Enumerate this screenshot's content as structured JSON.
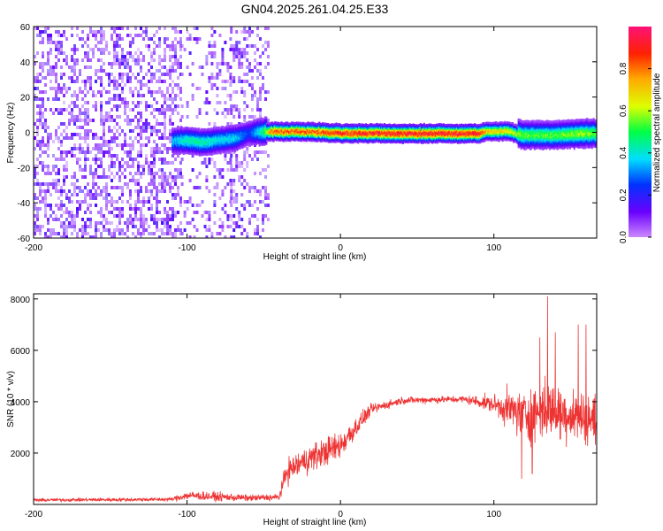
{
  "title": "GN04.2025.261.04.25.E33",
  "chart_data": [
    {
      "type": "heatmap",
      "name": "spectrogram",
      "xlabel": "Height of straight line (km)",
      "ylabel": "Frequency (Hz)",
      "xlim": [
        -200,
        167
      ],
      "ylim": [
        -60,
        60
      ],
      "xticks": [
        -200,
        -100,
        0,
        100
      ],
      "yticks": [
        -60,
        -40,
        -20,
        0,
        20,
        40,
        60
      ],
      "x_ticklabels": [
        "-200",
        "-100",
        "0",
        "100"
      ],
      "y_ticklabels": [
        "-60",
        "-40",
        "-20",
        "0",
        "20",
        "40",
        "60"
      ],
      "colorbar": {
        "label": "Normalized spectral amplitude",
        "range": [
          0,
          1
        ],
        "ticks": [
          0.0,
          0.2,
          0.4,
          0.6,
          0.8
        ],
        "ticklabels": [
          "0.0",
          "0.2",
          "0.4",
          "0.6",
          "0.8"
        ],
        "stops": [
          "#cc88ff",
          "#6a00ff",
          "#0033ff",
          "#00ddff",
          "#00ff44",
          "#ddff00",
          "#ffaa00",
          "#ff2200",
          "#ff1177"
        ]
      },
      "noise_segments": [
        {
          "x_start": -200,
          "x_end": -104,
          "level": 0.45
        },
        {
          "x_start": -104,
          "x_end": -96,
          "level": 0.22
        },
        {
          "x_start": -96,
          "x_end": -88,
          "level": 0.12
        },
        {
          "x_start": -88,
          "x_end": -72,
          "level": 0.25
        },
        {
          "x_start": -72,
          "x_end": -60,
          "level": 0.4
        },
        {
          "x_start": -60,
          "x_end": -47,
          "level": 0.3
        }
      ],
      "signal_band": [
        {
          "x": -110,
          "freq": -4,
          "amp": 0.35
        },
        {
          "x": -100,
          "freq": -4,
          "amp": 0.45
        },
        {
          "x": -90,
          "freq": -5,
          "amp": 0.45
        },
        {
          "x": -80,
          "freq": -4,
          "amp": 0.4
        },
        {
          "x": -70,
          "freq": -3,
          "amp": 0.4
        },
        {
          "x": -60,
          "freq": 0,
          "amp": 0.25
        },
        {
          "x": -50,
          "freq": 1,
          "amp": 0.5
        },
        {
          "x": -45,
          "freq": 1,
          "amp": 0.85
        },
        {
          "x": -30,
          "freq": 1,
          "amp": 0.85
        },
        {
          "x": -20,
          "freq": 1,
          "amp": 0.85
        },
        {
          "x": 0,
          "freq": 0,
          "amp": 0.92
        },
        {
          "x": 50,
          "freq": 0,
          "amp": 0.95
        },
        {
          "x": 90,
          "freq": 0,
          "amp": 0.95
        },
        {
          "x": 95,
          "freq": 1,
          "amp": 0.7
        },
        {
          "x": 110,
          "freq": 1,
          "amp": 0.7
        },
        {
          "x": 118,
          "freq": -1,
          "amp": 0.55
        },
        {
          "x": 140,
          "freq": -1,
          "amp": 0.55
        },
        {
          "x": 160,
          "freq": 0,
          "amp": 0.6
        },
        {
          "x": 167,
          "freq": 0,
          "amp": 0.55
        }
      ]
    },
    {
      "type": "line",
      "name": "snr",
      "xlabel": "Height of straight line (km)",
      "ylabel": "SNR (10 * v/v)",
      "xlim": [
        -200,
        167
      ],
      "ylim": [
        0,
        8200
      ],
      "xticks": [
        -200,
        -100,
        0,
        100
      ],
      "yticks": [
        2000,
        4000,
        6000,
        8000
      ],
      "x_ticklabels": [
        "-200",
        "-100",
        "0",
        "100"
      ],
      "y_ticklabels": [
        "2000",
        "4000",
        "6000",
        "8000"
      ],
      "color": "#ee3333",
      "series": [
        {
          "name": "SNR",
          "envelope": [
            {
              "x": -200,
              "mean": 170,
              "spread": 90
            },
            {
              "x": -110,
              "mean": 200,
              "spread": 110
            },
            {
              "x": -100,
              "mean": 350,
              "spread": 250
            },
            {
              "x": -80,
              "mean": 300,
              "spread": 250
            },
            {
              "x": -60,
              "mean": 250,
              "spread": 180
            },
            {
              "x": -40,
              "mean": 280,
              "spread": 200
            },
            {
              "x": -35,
              "mean": 1300,
              "spread": 700
            },
            {
              "x": -20,
              "mean": 1800,
              "spread": 800
            },
            {
              "x": 0,
              "mean": 2300,
              "spread": 800
            },
            {
              "x": 10,
              "mean": 3000,
              "spread": 600
            },
            {
              "x": 20,
              "mean": 3700,
              "spread": 300
            },
            {
              "x": 40,
              "mean": 4050,
              "spread": 200
            },
            {
              "x": 80,
              "mean": 4100,
              "spread": 200
            },
            {
              "x": 100,
              "mean": 3900,
              "spread": 500
            },
            {
              "x": 110,
              "mean": 3700,
              "spread": 1100
            },
            {
              "x": 120,
              "mean": 3500,
              "spread": 1500
            },
            {
              "x": 135,
              "mean": 3700,
              "spread": 1700
            },
            {
              "x": 150,
              "mean": 3500,
              "spread": 1500
            },
            {
              "x": 167,
              "mean": 3300,
              "spread": 1400
            }
          ],
          "peaks": [
            {
              "x": 130,
              "y": 6500
            },
            {
              "x": 135,
              "y": 8100
            },
            {
              "x": 140,
              "y": 6700
            },
            {
              "x": 155,
              "y": 7000
            },
            {
              "x": 160,
              "y": 7000
            },
            {
              "x": 118,
              "y": 1000
            },
            {
              "x": 125,
              "y": 1200
            }
          ]
        }
      ]
    }
  ]
}
